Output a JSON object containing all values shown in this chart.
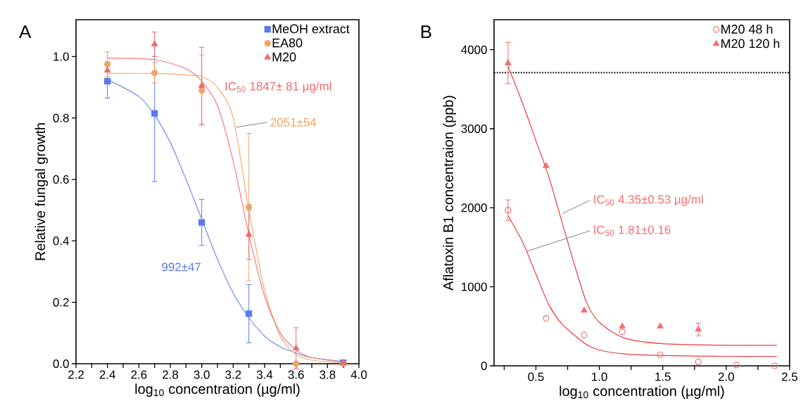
{
  "chart_data": [
    {
      "type": "scatter",
      "title": "A",
      "xlabel": "log$_{10}$ concentration (µg/ml)",
      "ylabel": "Relative fungal growth",
      "xlim": [
        2.2,
        4.0
      ],
      "ylim": [
        0,
        1.12
      ],
      "xticks": [
        2.2,
        {
          "value": 2.3,
          "label": null
        },
        2.4,
        {
          "value": 2.5,
          "label": null
        },
        2.6,
        {
          "value": 2.7,
          "label": null
        },
        2.8,
        {
          "value": 2.9,
          "label": null
        },
        {
          "value": 3.0,
          "label": "3.0"
        },
        {
          "value": 3.1,
          "label": null
        },
        3.2,
        {
          "value": 3.3,
          "label": null
        },
        3.4,
        {
          "value": 3.5,
          "label": null
        },
        3.6,
        {
          "value": 3.7,
          "label": null
        },
        3.8,
        {
          "value": 3.9,
          "label": null
        },
        {
          "value": 4.0,
          "label": "4.0"
        }
      ],
      "yticks": [
        {
          "value": 0,
          "label": "0.0"
        },
        0.2,
        0.4,
        0.6,
        0.8,
        {
          "value": 1.0,
          "label": "1.0"
        }
      ],
      "legend": "top right",
      "grid": false,
      "series": [
        {
          "name": "MeOH extract",
          "marker": "square",
          "color": "#5a78f0",
          "x": [
            2.4,
            2.7,
            3.0,
            3.3,
            3.9
          ],
          "values": [
            0.92,
            0.815,
            0.46,
            0.163,
            0.003
          ],
          "errors": [
            0.055,
            0.222,
            0.075,
            0.095,
            null
          ]
        },
        {
          "name": "EA80",
          "marker": "circle",
          "color": "#f2a263",
          "x": [
            2.4,
            2.7,
            3.0,
            3.3,
            3.6,
            3.9
          ],
          "values": [
            0.975,
            0.947,
            0.89,
            0.51,
            0.0,
            0.0
          ],
          "errors": [
            0.04,
            0.033,
            0.115,
            0.24,
            null,
            null
          ]
        },
        {
          "name": "M20",
          "marker": "triangle",
          "color": "#f26868",
          "x": [
            2.4,
            2.7,
            3.0,
            3.3,
            3.6,
            3.9
          ],
          "values": [
            0.955,
            1.04,
            0.905,
            0.42,
            0.05,
            0.003
          ],
          "errors": [
            null,
            0.04,
            0.125,
            0.08,
            0.067,
            null
          ]
        },
        {
          "type": "line",
          "marker": "none",
          "color": "#6f8cf3",
          "x": [
            2.4,
            2.6,
            2.7,
            2.8,
            2.9,
            3.0,
            3.1,
            3.2,
            3.3,
            3.4,
            3.5,
            3.6,
            3.7,
            3.9
          ],
          "values": [
            0.925,
            0.87,
            0.81,
            0.72,
            0.6,
            0.47,
            0.34,
            0.23,
            0.15,
            0.09,
            0.055,
            0.035,
            0.02,
            0.007
          ]
        },
        {
          "type": "line",
          "marker": "none",
          "color": "#f5ac6c",
          "x": [
            2.4,
            2.7,
            2.9,
            3.0,
            3.1,
            3.2,
            3.3,
            3.4,
            3.5,
            3.6,
            3.7,
            3.9
          ],
          "values": [
            0.945,
            0.945,
            0.94,
            0.935,
            0.9,
            0.8,
            0.5,
            0.24,
            0.09,
            0.03,
            0.012,
            0.002
          ]
        },
        {
          "type": "line",
          "marker": "none",
          "color": "#f47a7a",
          "x": [
            2.4,
            2.7,
            2.9,
            3.0,
            3.1,
            3.2,
            3.3,
            3.4,
            3.5,
            3.6,
            3.7,
            3.9
          ],
          "values": [
            0.995,
            0.99,
            0.96,
            0.92,
            0.84,
            0.66,
            0.42,
            0.22,
            0.1,
            0.045,
            0.02,
            0.005
          ]
        }
      ],
      "annotations": [
        "IC$_{50}$ 1847± 81 µg/ml",
        {
          "text": "2051±54",
          "x": 3.22,
          "y": 0.77
        },
        "992±47"
      ]
    },
    {
      "type": "scatter",
      "title": "B",
      "xlabel": "log$_{10}$ concentration (µg/ml)",
      "ylabel": "Aflatoxin B1 concentraion (ppb)",
      "xlim": [
        0.17,
        2.5
      ],
      "ylim": [
        0,
        4380
      ],
      "xticks": [
        {
          "value": 0.25,
          "label": null
        },
        0.5,
        {
          "value": 0.75,
          "label": null
        },
        {
          "value": 1.0,
          "label": "1.0"
        },
        {
          "value": 1.25,
          "label": null
        },
        1.5,
        {
          "value": 1.75,
          "label": null
        },
        {
          "value": 2.0,
          "label": "2.0"
        },
        {
          "value": 2.25,
          "label": null
        },
        2.5
      ],
      "yticks": [
        0,
        1000,
        2000,
        3000,
        4000
      ],
      "legend": "top right",
      "grid": false,
      "series": [
        {
          "name": "M20 48 h",
          "marker": "circle",
          "color": "#f46e6e",
          "x": [
            0.28,
            0.58,
            0.88,
            1.18,
            1.48,
            1.78,
            2.08,
            2.38
          ],
          "values": [
            1970,
            600,
            390,
            430,
            140,
            50,
            10,
            0
          ],
          "errors": [
            130,
            null,
            null,
            null,
            null,
            null,
            null,
            null
          ]
        },
        {
          "name": "M20 120 h",
          "marker": "triangle",
          "color": "#f46e6e",
          "x": [
            0.28,
            0.58,
            0.88,
            1.18,
            1.48,
            1.78
          ],
          "values": [
            3830,
            2530,
            700,
            500,
            500,
            460
          ],
          "errors": [
            260,
            null,
            null,
            null,
            null,
            80
          ]
        },
        {
          "type": "line",
          "marker": "none",
          "color": "#f03a3a",
          "x": [
            0.28,
            0.4,
            0.5,
            0.6,
            0.7,
            0.88,
            1.0,
            1.2,
            1.5,
            2.0,
            2.4
          ],
          "values": [
            1900,
            1550,
            1160,
            780,
            540,
            290,
            200,
            150,
            130,
            120,
            120
          ]
        },
        {
          "type": "line",
          "marker": "none",
          "color": "#f03a3a",
          "x": [
            0.28,
            0.4,
            0.5,
            0.6,
            0.7,
            0.8,
            0.9,
            1.0,
            1.2,
            1.5,
            2.0,
            2.4
          ],
          "values": [
            3790,
            3300,
            2850,
            2400,
            1850,
            1300,
            800,
            550,
            350,
            280,
            260,
            260
          ]
        }
      ],
      "ref_lines": [
        {
          "axis": "y",
          "value": 3710,
          "color": "#000000",
          "line_style": "dotted"
        }
      ],
      "annotations": [
        {
          "text": "IC$_{50}$ 4.35±0.53 µg/ml",
          "x": 0.71,
          "y": 1930
        },
        {
          "text": "IC$_{50}$ 1.81±0.16",
          "x": 0.43,
          "y": 1450
        }
      ]
    }
  ]
}
